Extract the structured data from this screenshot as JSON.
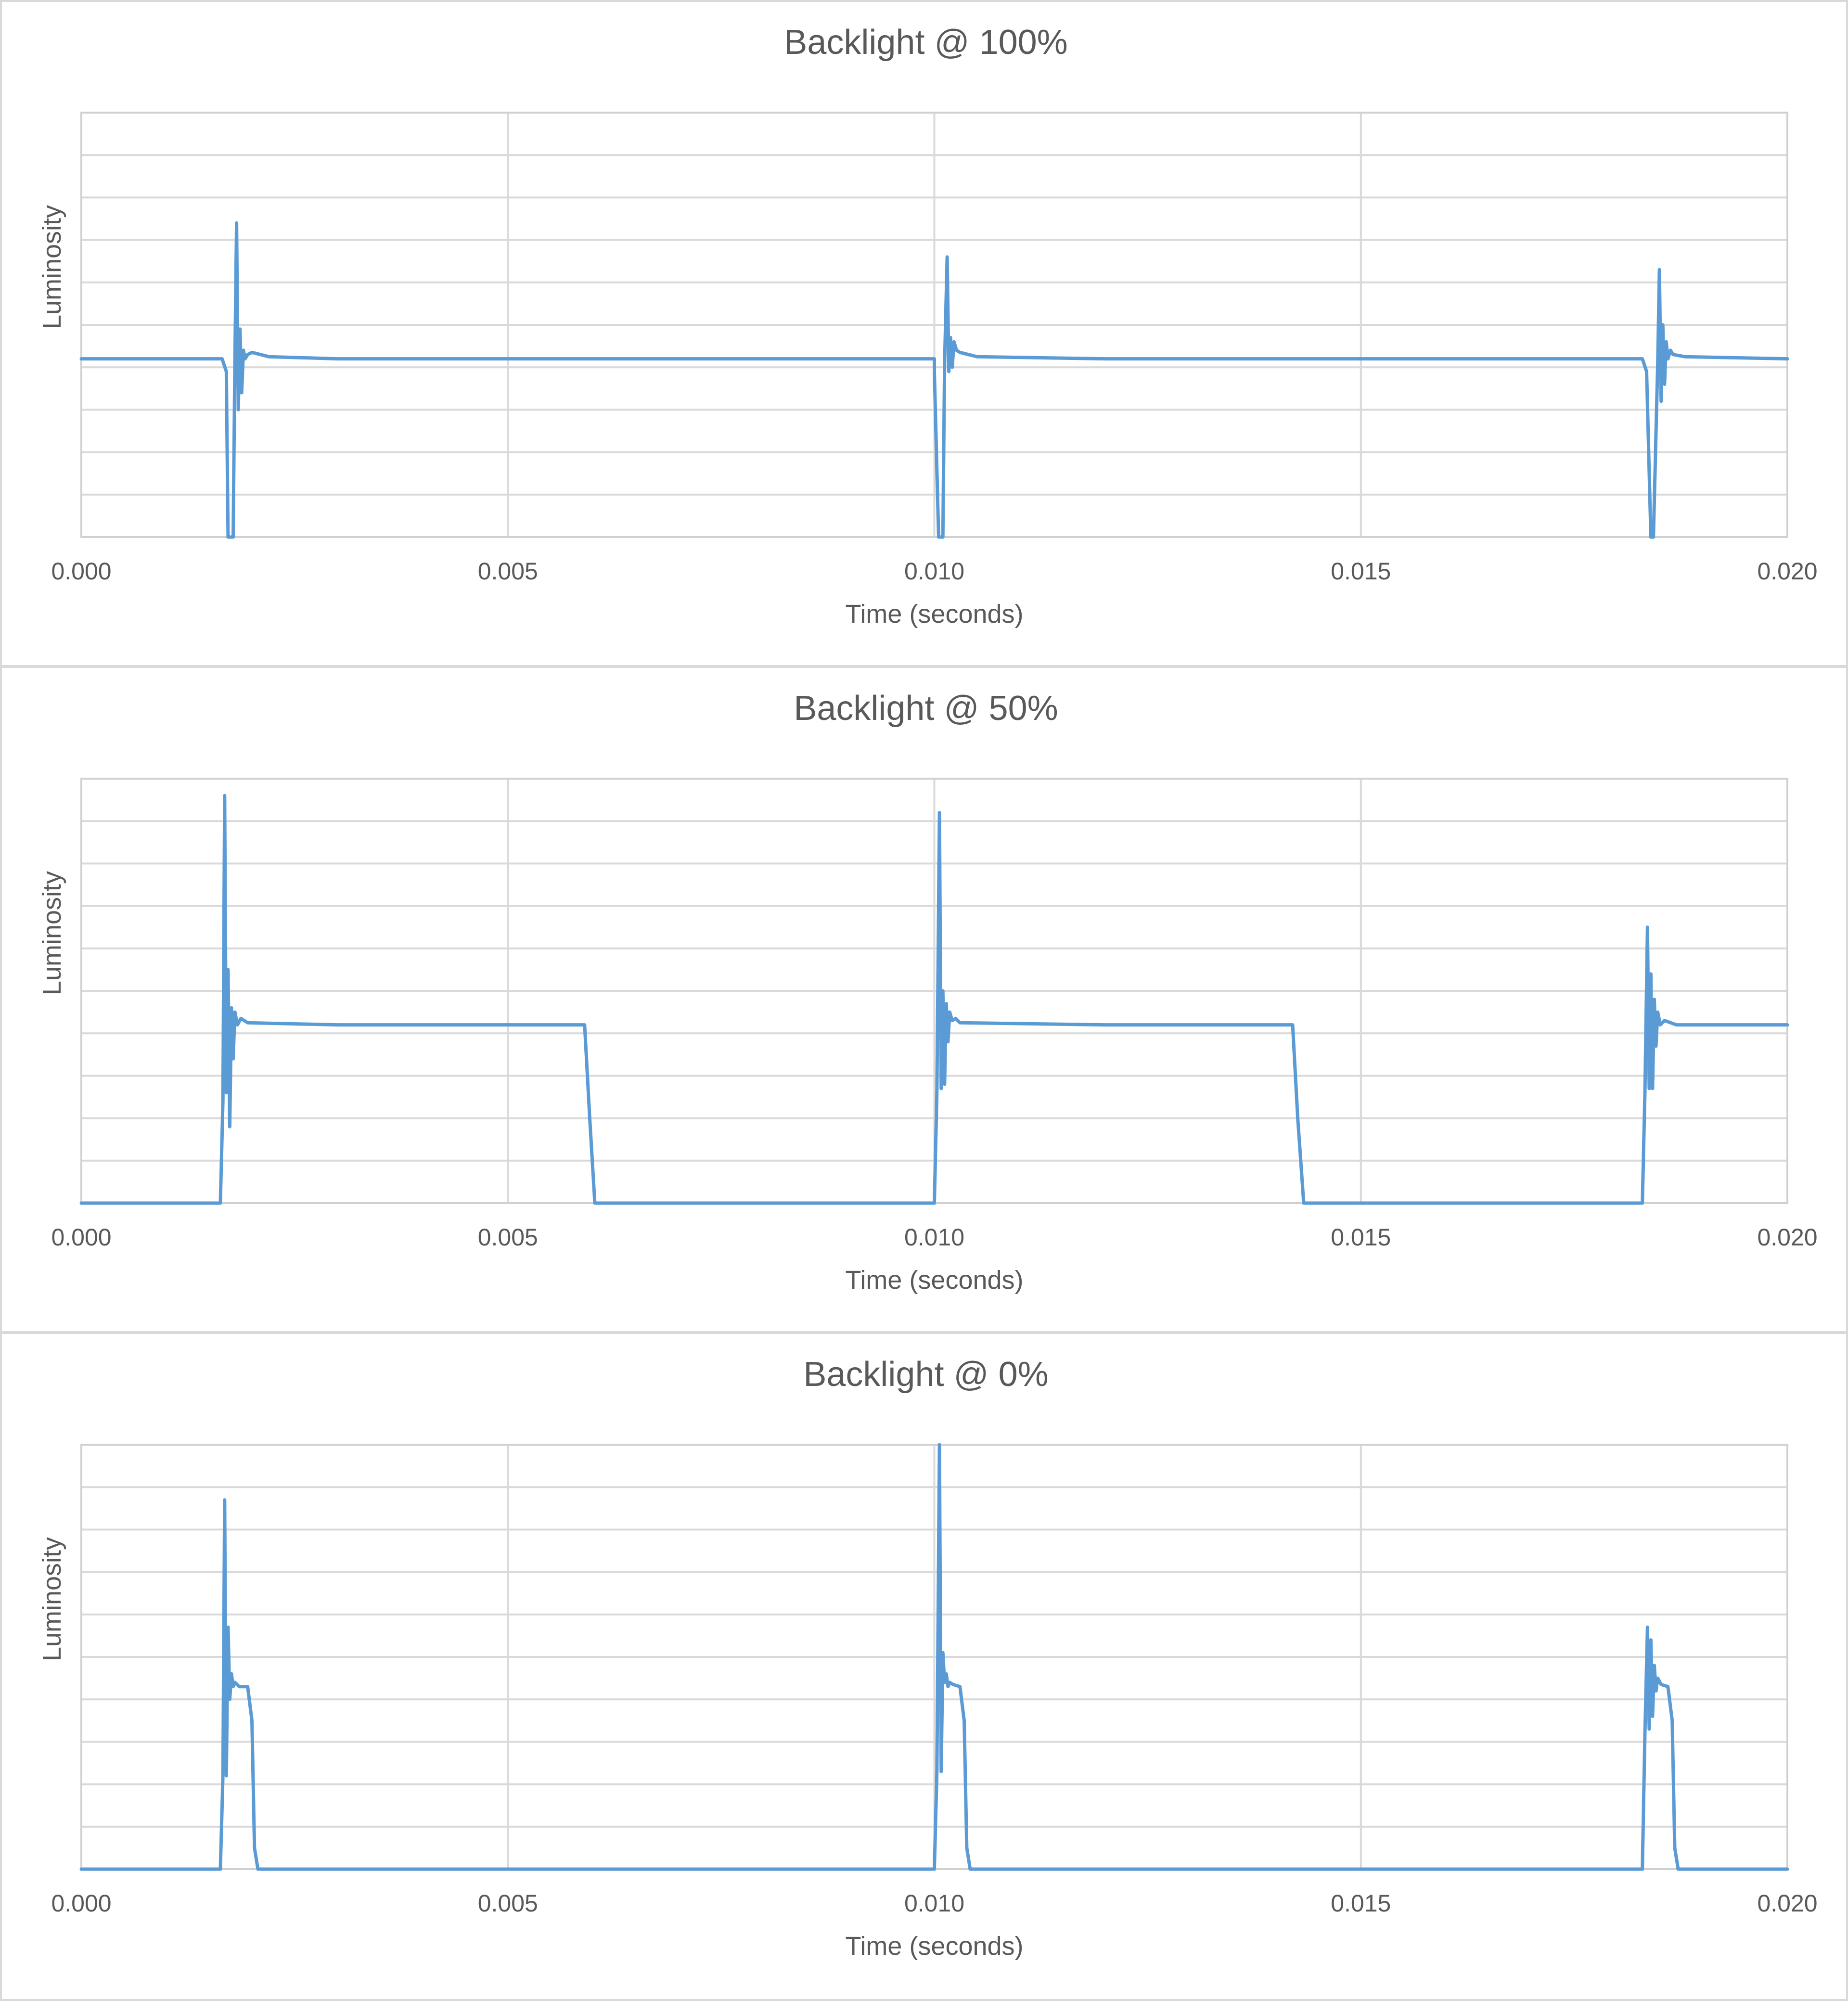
{
  "colors": {
    "series": "#5b9bd5",
    "grid": "#d9d9d9",
    "text": "#595959"
  },
  "chart_data": [
    {
      "type": "line",
      "title": "Backlight @ 100%",
      "xlabel": "Time (seconds)",
      "ylabel": "Luminosity",
      "xlim": [
        0.0,
        0.02
      ],
      "ylim": [
        0,
        10
      ],
      "x_ticks": [
        "0.000",
        "0.005",
        "0.010",
        "0.015",
        "0.020"
      ],
      "grid": true,
      "legend": "none",
      "series": [
        {
          "x": [
            0,
            0.00165,
            0.0017,
            0.00172,
            0.00178,
            0.0018,
            0.00182,
            0.00184,
            0.00186,
            0.00188,
            0.0019,
            0.00192,
            0.00195,
            0.002,
            0.0022,
            0.003,
            0.01,
            0.01,
            0.01005,
            0.0101,
            0.01012,
            0.01015,
            0.01017,
            0.01019,
            0.01021,
            0.01023,
            0.01026,
            0.0103,
            0.0105,
            0.012,
            0.0183,
            0.01835,
            0.0184,
            0.01843,
            0.01848,
            0.0185,
            0.01852,
            0.01854,
            0.01856,
            0.01858,
            0.0186,
            0.01863,
            0.01866,
            0.0188,
            0.02
          ],
          "y": [
            4.2,
            4.2,
            3.9,
            0.0,
            0.0,
            4.2,
            7.4,
            3.0,
            4.9,
            3.4,
            4.4,
            4.2,
            4.3,
            4.35,
            4.25,
            4.2,
            4.2,
            3.9,
            0.0,
            0.0,
            4.1,
            6.6,
            3.9,
            4.7,
            4.0,
            4.6,
            4.4,
            4.35,
            4.25,
            4.2,
            4.2,
            3.9,
            0.0,
            0.0,
            4.1,
            6.3,
            3.2,
            5.0,
            3.6,
            4.6,
            4.2,
            4.4,
            4.3,
            4.25,
            4.2
          ]
        }
      ]
    },
    {
      "type": "line",
      "title": "Backlight @ 50%",
      "xlabel": "Time (seconds)",
      "ylabel": "Luminosity",
      "xlim": [
        0.0,
        0.02
      ],
      "ylim": [
        0,
        10
      ],
      "x_ticks": [
        "0.000",
        "0.005",
        "0.010",
        "0.015",
        "0.020"
      ],
      "grid": true,
      "legend": "none",
      "series": [
        {
          "x": [
            0,
            0.00163,
            0.00166,
            0.00168,
            0.0017,
            0.00172,
            0.00174,
            0.00176,
            0.00178,
            0.0018,
            0.00183,
            0.00187,
            0.00195,
            0.003,
            0.0059,
            0.00596,
            0.00602,
            0.01,
            0.01003,
            0.01006,
            0.01008,
            0.0101,
            0.01012,
            0.01014,
            0.01016,
            0.01018,
            0.01021,
            0.01025,
            0.0103,
            0.012,
            0.0142,
            0.01426,
            0.01433,
            0.0183,
            0.01833,
            0.01836,
            0.01838,
            0.0184,
            0.01842,
            0.01844,
            0.01846,
            0.01848,
            0.01851,
            0.01856,
            0.0187,
            0.02
          ],
          "y": [
            0.0,
            0.0,
            2.4,
            9.6,
            2.6,
            5.5,
            1.8,
            4.6,
            3.4,
            4.5,
            4.2,
            4.35,
            4.25,
            4.2,
            4.2,
            2.0,
            0.0,
            0.0,
            2.6,
            9.2,
            2.7,
            5.0,
            2.8,
            4.7,
            3.8,
            4.5,
            4.3,
            4.35,
            4.25,
            4.2,
            4.2,
            2.0,
            0.0,
            0.0,
            2.6,
            6.5,
            2.7,
            5.4,
            2.7,
            4.8,
            3.7,
            4.5,
            4.2,
            4.3,
            4.2,
            4.2
          ]
        }
      ]
    },
    {
      "type": "line",
      "title": "Backlight @ 0%",
      "xlabel": "Time (seconds)",
      "ylabel": "Luminosity",
      "xlim": [
        0.0,
        0.02
      ],
      "ylim": [
        0,
        10
      ],
      "x_ticks": [
        "0.000",
        "0.005",
        "0.010",
        "0.015",
        "0.020"
      ],
      "grid": true,
      "legend": "none",
      "series": [
        {
          "x": [
            0,
            0.00163,
            0.00166,
            0.00168,
            0.0017,
            0.00172,
            0.00174,
            0.00176,
            0.00178,
            0.0018,
            0.00185,
            0.00195,
            0.002,
            0.00203,
            0.00207,
            0.01,
            0.01003,
            0.01006,
            0.01008,
            0.0101,
            0.01012,
            0.01014,
            0.01016,
            0.01018,
            0.01022,
            0.0103,
            0.01035,
            0.01038,
            0.01042,
            0.0183,
            0.01833,
            0.01836,
            0.01838,
            0.0184,
            0.01842,
            0.01844,
            0.01846,
            0.01848,
            0.01852,
            0.0186,
            0.01865,
            0.01868,
            0.01872,
            0.02
          ],
          "y": [
            0.0,
            0.0,
            2.2,
            8.7,
            2.2,
            5.7,
            4.0,
            4.6,
            4.3,
            4.4,
            4.3,
            4.3,
            3.5,
            0.5,
            0.0,
            0.0,
            2.3,
            10.0,
            2.3,
            5.1,
            4.4,
            4.6,
            4.3,
            4.4,
            4.35,
            4.3,
            3.5,
            0.5,
            0.0,
            0.0,
            3.2,
            5.7,
            3.3,
            5.4,
            3.6,
            4.8,
            4.2,
            4.5,
            4.35,
            4.3,
            3.5,
            0.5,
            0.0,
            0.0
          ]
        }
      ]
    }
  ]
}
